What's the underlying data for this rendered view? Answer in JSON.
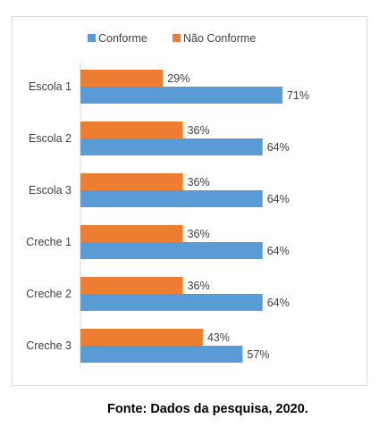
{
  "chart_data": {
    "type": "bar",
    "orientation": "horizontal",
    "categories": [
      "Escola 1",
      "Escola 2",
      "Escola 3",
      "Creche 1",
      "Creche 2",
      "Creche 3"
    ],
    "series": [
      {
        "name": "Conforme",
        "values": [
          71,
          64,
          64,
          64,
          64,
          57
        ],
        "color": "#5B9BD5"
      },
      {
        "name": "Não Conforme",
        "values": [
          29,
          36,
          36,
          36,
          36,
          43
        ],
        "color": "#ED7D31"
      }
    ],
    "value_suffix": "%",
    "xlim": [
      0,
      100
    ],
    "grid": false,
    "legend_position": "top"
  },
  "source_note": "Fonte: Dados da pesquisa, 2020."
}
